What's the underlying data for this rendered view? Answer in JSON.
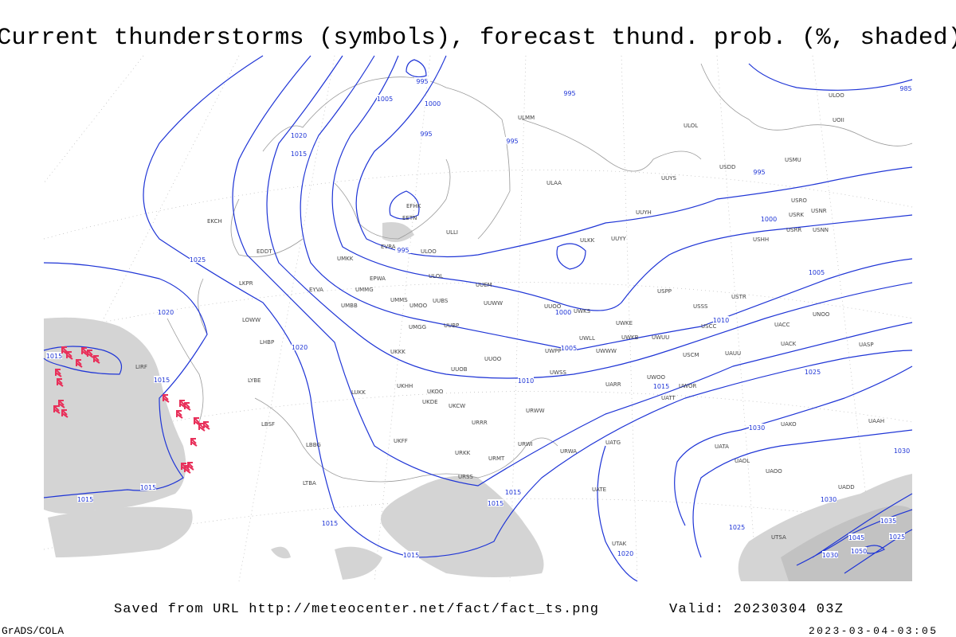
{
  "title": "Current thunderstorms (symbols), forecast thund. prob. (%, shaded)",
  "map": {
    "isobar_labels": [
      995,
      1005,
      1000,
      995,
      995,
      995,
      1020,
      1015,
      995,
      1000,
      995,
      1025,
      1005,
      1020,
      1000,
      1010,
      1020,
      1005,
      1015,
      1015,
      1010,
      1025,
      1015,
      1030,
      1030,
      1015,
      1015,
      1015,
      1015,
      1030,
      1035,
      1015,
      1025,
      1015,
      1020,
      1045,
      1050,
      1025,
      1030,
      985
    ],
    "station_labels": [
      "ULOO",
      "UOII",
      "ULAA",
      "ULMM",
      "ULOL",
      "USDD",
      "USMU",
      "UUYS",
      "UUYH",
      "USRO",
      "USRK",
      "USNR",
      "USRR",
      "USNN",
      "USHH",
      "ULKK",
      "UUYY",
      "EFHK",
      "EETN",
      "ULLI",
      "EVRA",
      "ULOO",
      "UMKK",
      "EDDT",
      "EPWA",
      "ULOL",
      "UUEM",
      "UMMG",
      "EYVA",
      "UMBB",
      "UMMS",
      "UMOO",
      "UUBS",
      "UUWW",
      "UUOO",
      "UWKS",
      "USPP",
      "USSS",
      "USTR",
      "UWKE",
      "UNOO",
      "UACC",
      "USCC",
      "UWLL",
      "UWKB",
      "UWUU",
      "UACK",
      "UASP",
      "UMGG",
      "UUBP",
      "UKKK",
      "UWPP",
      "UWWW",
      "USCM",
      "UAUU",
      "UUOO",
      "UUOB",
      "UWSS",
      "UWOO",
      "UWOR",
      "UARR",
      "UATT",
      "UKHH",
      "UKOO",
      "UKDE",
      "UKCW",
      "URWW",
      "URRR",
      "UAKO",
      "UAAH",
      "UKFF",
      "URKK",
      "URMT",
      "URWI",
      "URWA",
      "UATG",
      "UATA",
      "UAOL",
      "UAOO",
      "URSS",
      "UATE",
      "UADD",
      "UTAK",
      "UTSA",
      "LKPR",
      "LOWW",
      "LHBP",
      "LYBE",
      "LBSF",
      "LBBG",
      "LTBA",
      "LUKK",
      "LIRF",
      "EKCH"
    ]
  },
  "footer": {
    "source": "Saved from URL http://meteocenter.net/fact/fact_ts.png",
    "valid": "Valid: 20230304 03Z",
    "software": "GrADS/COLA",
    "timestamp": "2023-03-04-03:05"
  }
}
